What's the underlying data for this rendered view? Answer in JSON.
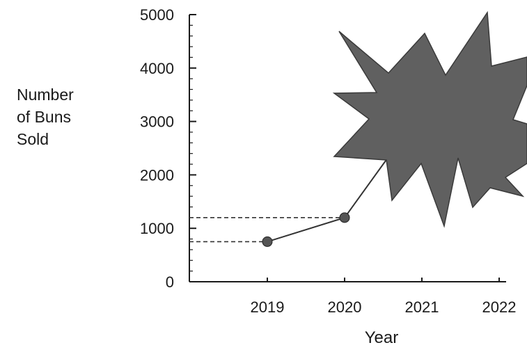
{
  "chart_data": {
    "type": "line",
    "title": "",
    "ylabel_lines": [
      "Number",
      "of Buns",
      "Sold"
    ],
    "xlabel": "Year",
    "x": [
      2019,
      2020
    ],
    "y": [
      750,
      1200
    ],
    "x_ticks": [
      "2019",
      "2020",
      "2021",
      "2022"
    ],
    "y_ticks": [
      0,
      1000,
      2000,
      3000,
      4000,
      5000
    ],
    "ylim": [
      0,
      5000
    ],
    "xlim": [
      2018,
      2022
    ],
    "grid": false,
    "annotation": "dashed reference lines from the y-axis to the 2019 and 2020 points; the rest of the plot is hidden behind a dark starburst shape",
    "colors": {
      "line": "#333333",
      "marker": "#555555",
      "burst": "#606060"
    }
  }
}
